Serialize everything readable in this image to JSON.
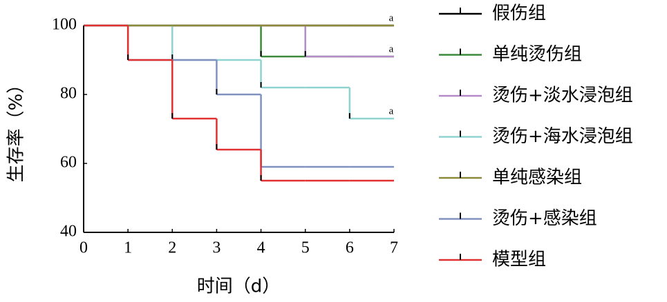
{
  "chart_data": {
    "type": "step",
    "xlabel": "时间（d）",
    "ylabel": "生存率（%）",
    "x": [
      0,
      1,
      2,
      3,
      4,
      5,
      6,
      7
    ],
    "xlim": [
      0,
      7
    ],
    "xticks": [
      0,
      1,
      2,
      3,
      4,
      5,
      6,
      7
    ],
    "ylim": [
      40,
      100
    ],
    "yticks": [
      40,
      60,
      80,
      100
    ],
    "legend": "right",
    "series": [
      {
        "name": "假伤组",
        "color": "#000000",
        "values": [
          100,
          100,
          100,
          100,
          100,
          100,
          100,
          100
        ]
      },
      {
        "name": "单纯烫伤组",
        "color": "#3a8a3a",
        "values": [
          100,
          100,
          100,
          100,
          91,
          91,
          91,
          91
        ]
      },
      {
        "name": "烫伤+淡水浸泡组",
        "color": "#b48ac8",
        "values": [
          100,
          100,
          100,
          100,
          100,
          91,
          91,
          91
        ],
        "annotation": "a"
      },
      {
        "name": "烫伤+海水浸泡组",
        "color": "#8fd3d0",
        "values": [
          100,
          100,
          90,
          90,
          82,
          82,
          73,
          73
        ],
        "annotation": "a"
      },
      {
        "name": "单纯感染组",
        "color": "#8b8a3a",
        "values": [
          100,
          100,
          100,
          100,
          100,
          100,
          100,
          100
        ],
        "annotation": "a"
      },
      {
        "name": "烫伤+感染组",
        "color": "#8090c0",
        "values": [
          100,
          90,
          90,
          80,
          59,
          59,
          59,
          59
        ]
      },
      {
        "name": "模型组",
        "color": "#e03030",
        "values": [
          100,
          90,
          73,
          64,
          55,
          55,
          55,
          55
        ]
      }
    ]
  }
}
